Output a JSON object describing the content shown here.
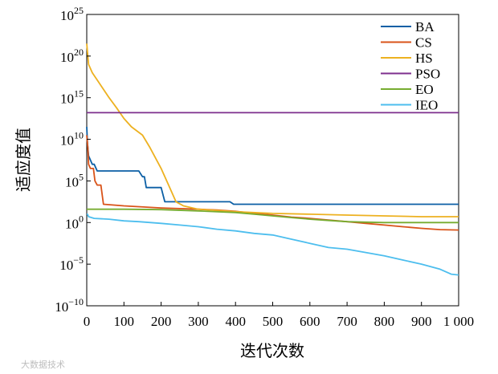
{
  "chart_data": {
    "type": "line",
    "title": "",
    "xlabel": "迭代次数",
    "ylabel": "适应度值",
    "y_scale": "log10",
    "xlim": [
      0,
      1000
    ],
    "ylim_exponent": [
      -10,
      25
    ],
    "x_ticks": [
      0,
      100,
      200,
      300,
      400,
      500,
      600,
      700,
      800,
      900,
      1000
    ],
    "x_tick_labels": [
      "0",
      "100",
      "200",
      "300",
      "400",
      "500",
      "600",
      "700",
      "800",
      "900",
      "1 000"
    ],
    "y_tick_exponents": [
      -10,
      -5,
      0,
      5,
      10,
      15,
      20,
      25
    ],
    "y_tick_labels": [
      "10",
      "10",
      "10",
      "10",
      "10",
      "10",
      "10",
      "10"
    ],
    "y_tick_label_sups": [
      "−10",
      "−5",
      "0",
      "5",
      "10",
      "15",
      "20",
      "25"
    ],
    "legend_position": "top-right",
    "series": [
      {
        "name": "BA",
        "color": "#0b5fa5",
        "points_log10": [
          [
            0,
            11.5
          ],
          [
            2,
            9.5
          ],
          [
            5,
            8
          ],
          [
            15,
            7
          ],
          [
            20,
            7
          ],
          [
            28,
            6.2
          ],
          [
            100,
            6.2
          ],
          [
            140,
            6.2
          ],
          [
            150,
            5.5
          ],
          [
            155,
            5.5
          ],
          [
            160,
            4.2
          ],
          [
            200,
            4.2
          ],
          [
            210,
            2.5
          ],
          [
            385,
            2.5
          ],
          [
            395,
            2.2
          ],
          [
            1000,
            2.2
          ]
        ]
      },
      {
        "name": "CS",
        "color": "#d95319",
        "points_log10": [
          [
            0,
            10.5
          ],
          [
            3,
            9
          ],
          [
            5,
            7
          ],
          [
            10,
            6.5
          ],
          [
            18,
            6.5
          ],
          [
            22,
            5
          ],
          [
            28,
            4.5
          ],
          [
            38,
            4.5
          ],
          [
            45,
            2.2
          ],
          [
            100,
            2
          ],
          [
            200,
            1.75
          ],
          [
            300,
            1.6
          ],
          [
            350,
            1.5
          ],
          [
            400,
            1.35
          ],
          [
            450,
            1.1
          ],
          [
            500,
            0.9
          ],
          [
            550,
            0.65
          ],
          [
            600,
            0.5
          ],
          [
            650,
            0.3
          ],
          [
            700,
            0.1
          ],
          [
            750,
            -0.1
          ],
          [
            800,
            -0.3
          ],
          [
            850,
            -0.5
          ],
          [
            900,
            -0.7
          ],
          [
            950,
            -0.85
          ],
          [
            1000,
            -0.9
          ]
        ]
      },
      {
        "name": "HS",
        "color": "#edb120",
        "points_log10": [
          [
            0,
            21.5
          ],
          [
            5,
            19
          ],
          [
            15,
            18
          ],
          [
            30,
            17
          ],
          [
            60,
            15
          ],
          [
            80,
            13.8
          ],
          [
            100,
            12.5
          ],
          [
            120,
            11.5
          ],
          [
            150,
            10.5
          ],
          [
            170,
            9
          ],
          [
            200,
            6.5
          ],
          [
            220,
            4.5
          ],
          [
            240,
            2.5
          ],
          [
            260,
            2
          ],
          [
            300,
            1.6
          ],
          [
            400,
            1.3
          ],
          [
            500,
            1.1
          ],
          [
            600,
            1
          ],
          [
            700,
            0.9
          ],
          [
            800,
            0.8
          ],
          [
            900,
            0.7
          ],
          [
            1000,
            0.7
          ]
        ]
      },
      {
        "name": "PSO",
        "color": "#7e2f8e",
        "points_log10": [
          [
            0,
            13.2
          ],
          [
            1000,
            13.2
          ]
        ]
      },
      {
        "name": "EO",
        "color": "#77ac30",
        "points_log10": [
          [
            0,
            1.6
          ],
          [
            100,
            1.6
          ],
          [
            200,
            1.55
          ],
          [
            300,
            1.4
          ],
          [
            400,
            1.2
          ],
          [
            450,
            1
          ],
          [
            500,
            0.8
          ],
          [
            550,
            0.6
          ],
          [
            600,
            0.4
          ],
          [
            650,
            0.25
          ],
          [
            700,
            0.1
          ],
          [
            750,
            0.05
          ],
          [
            800,
            0
          ],
          [
            1000,
            0
          ]
        ]
      },
      {
        "name": "IEO",
        "color": "#4dbeee",
        "points_log10": [
          [
            0,
            1
          ],
          [
            2,
            1
          ],
          [
            5,
            0.7
          ],
          [
            20,
            0.5
          ],
          [
            60,
            0.4
          ],
          [
            100,
            0.2
          ],
          [
            140,
            0.1
          ],
          [
            200,
            -0.1
          ],
          [
            250,
            -0.3
          ],
          [
            300,
            -0.5
          ],
          [
            350,
            -0.8
          ],
          [
            400,
            -1
          ],
          [
            450,
            -1.3
          ],
          [
            500,
            -1.5
          ],
          [
            550,
            -2
          ],
          [
            600,
            -2.5
          ],
          [
            650,
            -3
          ],
          [
            700,
            -3.2
          ],
          [
            750,
            -3.6
          ],
          [
            800,
            -4
          ],
          [
            850,
            -4.5
          ],
          [
            900,
            -5
          ],
          [
            950,
            -5.6
          ],
          [
            980,
            -6.2
          ],
          [
            1000,
            -6.3
          ]
        ]
      }
    ]
  },
  "watermark": "大数据技术"
}
